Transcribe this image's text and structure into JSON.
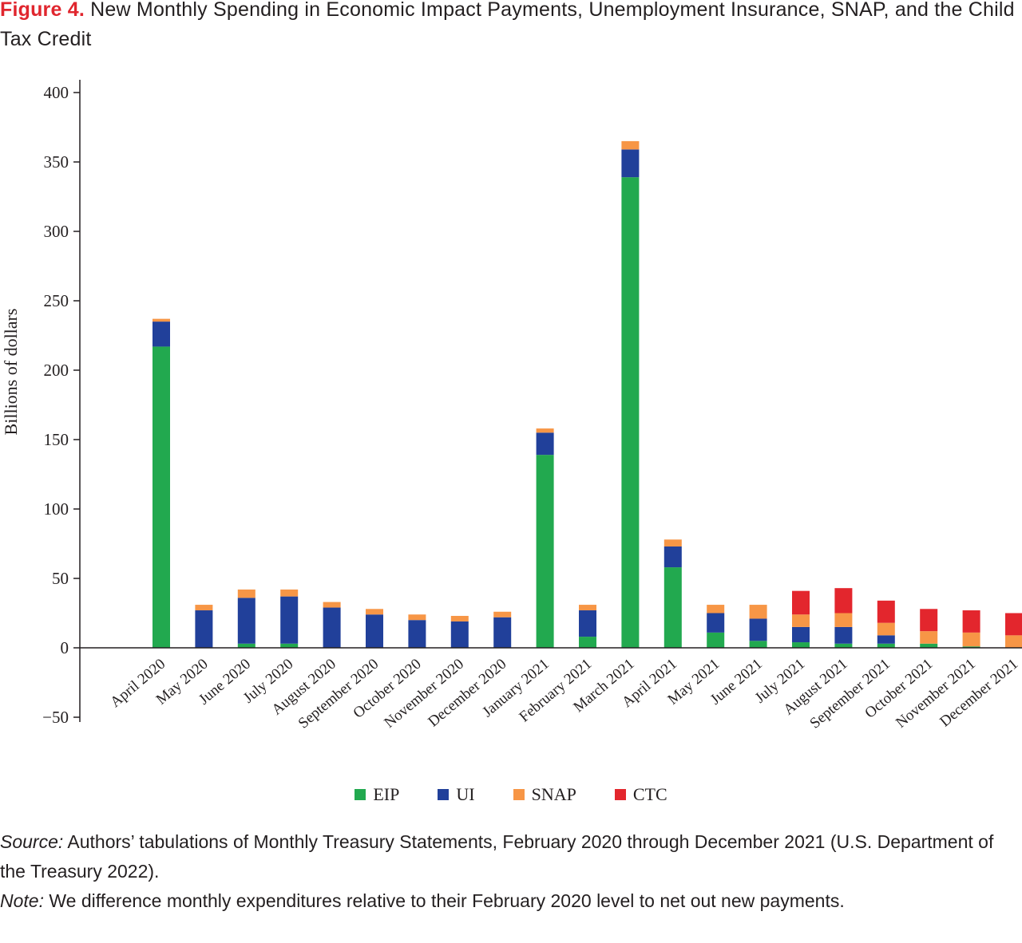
{
  "figure": {
    "label": "Figure 4.",
    "title": "New Monthly Spending in Economic Impact Payments, Unemployment Insurance, SNAP, and the Child Tax Credit"
  },
  "notes": {
    "source_label": "Source:",
    "source_text": "Authors’ tabulations of Monthly Treasury Statements, February 2020 through December 2021 (U.S. Department of the Treasury 2022).",
    "note_label": "Note:",
    "note_text": "We difference monthly expenditures relative to their February 2020 level to net out new payments."
  },
  "colors": {
    "EIP": "#22a94f",
    "UI": "#21409a",
    "SNAP": "#f79646",
    "CTC": "#e3262d"
  },
  "chart_data": {
    "type": "bar",
    "stacked": true,
    "ylabel": "Billions of dollars",
    "xlabel": "",
    "ylim": [
      -50,
      400
    ],
    "yticks": [
      -50,
      0,
      50,
      100,
      150,
      200,
      250,
      300,
      350,
      400
    ],
    "legend_position": "bottom-center",
    "grid": false,
    "categories": [
      "April 2020",
      "May 2020",
      "June 2020",
      "July 2020",
      "August 2020",
      "September 2020",
      "October 2020",
      "November 2020",
      "December 2020",
      "January 2021",
      "February 2021",
      "March 2021",
      "April 2021",
      "May 2021",
      "June 2021",
      "July 2021",
      "August 2021",
      "September 2021",
      "October 2021",
      "November 2021",
      "December 2021"
    ],
    "series": [
      {
        "name": "EIP",
        "values": [
          217,
          0,
          3,
          3,
          0,
          0,
          0,
          0,
          0,
          139,
          8,
          339,
          58,
          11,
          5,
          4,
          3,
          3,
          3,
          1,
          0
        ]
      },
      {
        "name": "UI",
        "values": [
          18,
          27,
          33,
          34,
          29,
          24,
          20,
          19,
          22,
          16,
          19,
          20,
          15,
          14,
          16,
          11,
          12,
          6,
          0,
          0,
          0
        ]
      },
      {
        "name": "SNAP",
        "values": [
          2,
          4,
          6,
          5,
          4,
          4,
          4,
          4,
          4,
          3,
          4,
          6,
          5,
          6,
          10,
          9,
          10,
          9,
          9,
          10,
          9
        ]
      },
      {
        "name": "CTC",
        "values": [
          0,
          0,
          0,
          0,
          0,
          0,
          0,
          0,
          0,
          0,
          0,
          0,
          0,
          0,
          0,
          17,
          18,
          16,
          16,
          16,
          16
        ]
      }
    ]
  }
}
